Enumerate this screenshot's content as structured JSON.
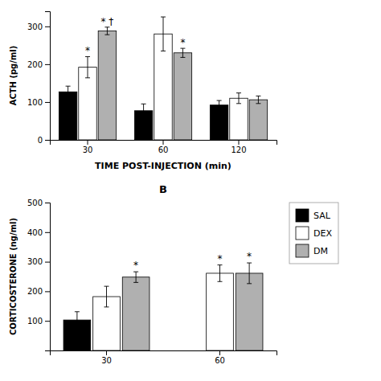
{
  "chart_data": [
    {
      "type": "bar",
      "xlabel": "TIME POST-INJECTION (min)",
      "ylabel": "ACTH (pg/ml)",
      "categories": [
        "30",
        "60",
        "120"
      ],
      "series": [
        {
          "name": "SAL",
          "color": "#000000",
          "values": [
            127,
            77,
            92
          ],
          "errors": [
            15,
            18,
            12
          ]
        },
        {
          "name": "DEX",
          "color": "#ffffff",
          "values": [
            192,
            280,
            110
          ],
          "errors": [
            28,
            45,
            14
          ]
        },
        {
          "name": "DM",
          "color": "#b0b0b0",
          "values": [
            288,
            230,
            106
          ],
          "errors": [
            10,
            12,
            10
          ]
        }
      ],
      "ylim": [
        0,
        340
      ],
      "yticks": [
        0,
        100,
        200,
        300
      ],
      "grid": false,
      "annotations": [
        {
          "text": "*",
          "category": "30",
          "series": "DEX"
        },
        {
          "text": "* †",
          "category": "30",
          "series": "DM"
        },
        {
          "text": "*",
          "category": "60",
          "series": "DM"
        }
      ]
    },
    {
      "type": "bar",
      "title": "B",
      "ylabel": "CORTICOSTERONE (ng/ml)",
      "categories": [
        "30",
        "60"
      ],
      "series": [
        {
          "name": "SAL",
          "color": "#000000",
          "values": [
            103,
            null
          ],
          "errors": [
            28,
            null
          ]
        },
        {
          "name": "DEX",
          "color": "#ffffff",
          "values": [
            182,
            261
          ],
          "errors": [
            35,
            28
          ]
        },
        {
          "name": "DM",
          "color": "#b0b0b0",
          "values": [
            248,
            261
          ],
          "errors": [
            18,
            35
          ]
        }
      ],
      "ylim": [
        0,
        500
      ],
      "yticks": [
        100,
        200,
        300,
        400,
        500
      ],
      "grid": false,
      "legend": "right",
      "annotations": [
        {
          "text": "*",
          "category": "30",
          "series": "DM"
        },
        {
          "text": "*",
          "category": "60",
          "series": "DEX"
        },
        {
          "text": "*",
          "category": "60",
          "series": "DM"
        }
      ]
    }
  ]
}
